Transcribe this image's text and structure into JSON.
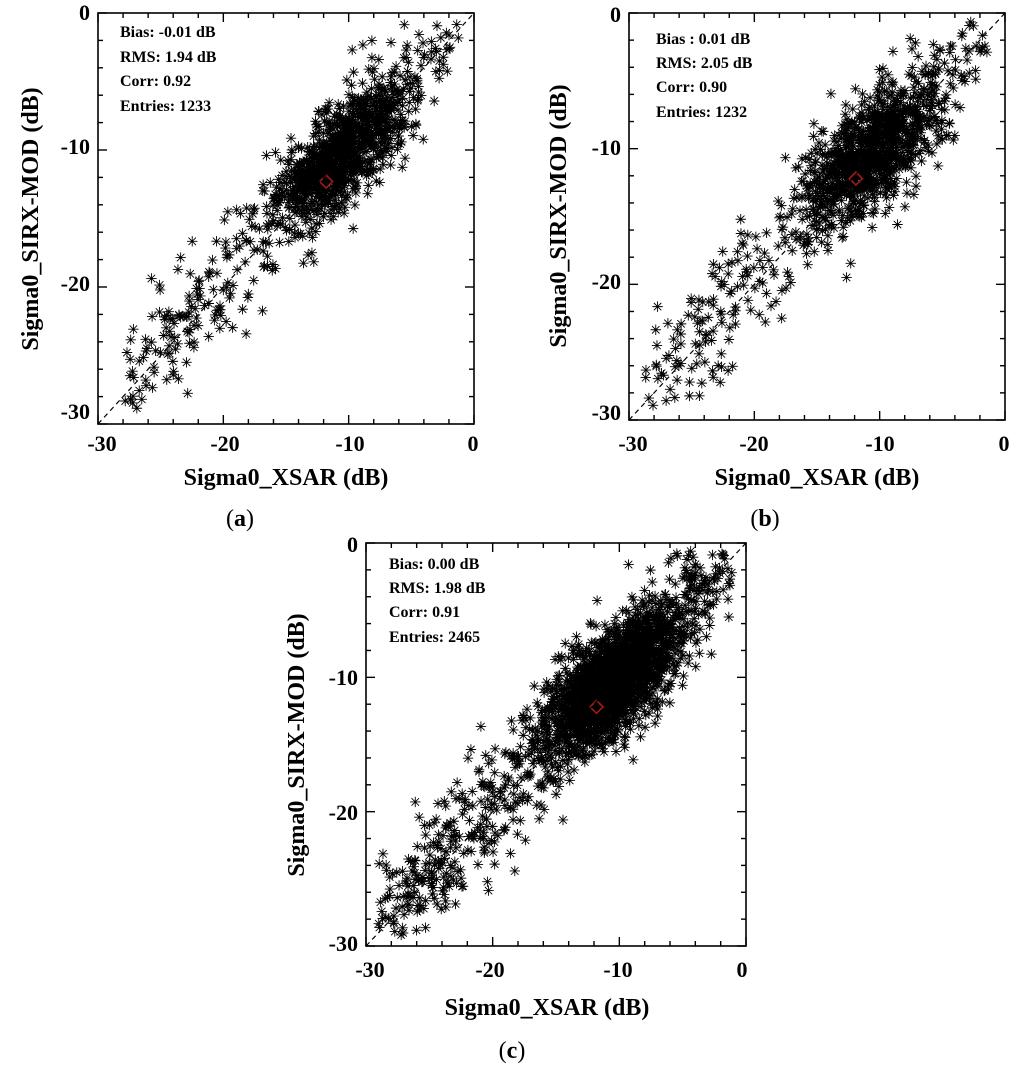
{
  "figure": {
    "colors": {
      "points": "#000000",
      "mean_marker": "#a31a1a",
      "diagonal": "#000000"
    }
  },
  "chart_data": [
    {
      "type": "scatter",
      "panel_label": "a",
      "xlabel": "Sigma0_XSAR (dB)",
      "ylabel": "Sigma0_SIRX-MOD (dB)",
      "xlim": [
        -30,
        0
      ],
      "ylim": [
        -30,
        0
      ],
      "xticks": [
        "-30",
        "-20",
        "-10",
        "0"
      ],
      "yticks": [
        "0",
        "-10",
        "-20",
        "-30"
      ],
      "grid": false,
      "reference_line": "y = x (dashed)",
      "stats": [
        "Bias: -0.01 dB",
        "RMS: 1.94 dB",
        "Corr: 0.92",
        "Entries: 1233"
      ],
      "mean_point": {
        "x": -11.8,
        "y": -12.3
      },
      "cloud": {
        "n": 1233,
        "center_x": -10.5,
        "center_y": -10.2,
        "spread_along": 3.2,
        "spread_across": 1.4,
        "tail_x_min": -28,
        "tail_x_max": -1,
        "rho": 0.92
      }
    },
    {
      "type": "scatter",
      "panel_label": "b",
      "xlabel": "Sigma0_XSAR (dB)",
      "ylabel": "Sigma0_SIRX-MOD (dB)",
      "xlim": [
        -30,
        0
      ],
      "ylim": [
        -30,
        0
      ],
      "xticks": [
        "-30",
        "-20",
        "-10",
        "0"
      ],
      "yticks": [
        "0",
        "-10",
        "-20",
        "-30"
      ],
      "grid": false,
      "reference_line": "y = x (dashed)",
      "stats": [
        "Bias : 0.01 dB",
        "RMS: 2.05 dB",
        "Corr: 0.90",
        "Entries: 1232"
      ],
      "mean_point": {
        "x": -11.9,
        "y": -12.2
      },
      "cloud": {
        "n": 1232,
        "center_x": -10.6,
        "center_y": -10.4,
        "spread_along": 3.4,
        "spread_across": 1.6,
        "tail_x_min": -29,
        "tail_x_max": -1,
        "rho": 0.9
      }
    },
    {
      "type": "scatter",
      "panel_label": "c",
      "xlabel": "Sigma0_XSAR (dB)",
      "ylabel": "Sigma0_SIRX-MOD (dB)",
      "xlim": [
        -30,
        0
      ],
      "ylim": [
        -30,
        0
      ],
      "xticks": [
        "-30",
        "-20",
        "-10",
        "0"
      ],
      "yticks": [
        "0",
        "-10",
        "-20",
        "-30"
      ],
      "grid": false,
      "reference_line": "y = x (dashed)",
      "stats": [
        "Bias: 0.00 dB",
        "RMS: 1.98 dB",
        "Corr: 0.91",
        "Entries: 2465"
      ],
      "mean_point": {
        "x": -11.8,
        "y": -12.2
      },
      "cloud": {
        "n": 2465,
        "center_x": -10.5,
        "center_y": -10.3,
        "spread_along": 3.3,
        "spread_across": 1.5,
        "tail_x_min": -29,
        "tail_x_max": -1,
        "rho": 0.91
      }
    }
  ]
}
